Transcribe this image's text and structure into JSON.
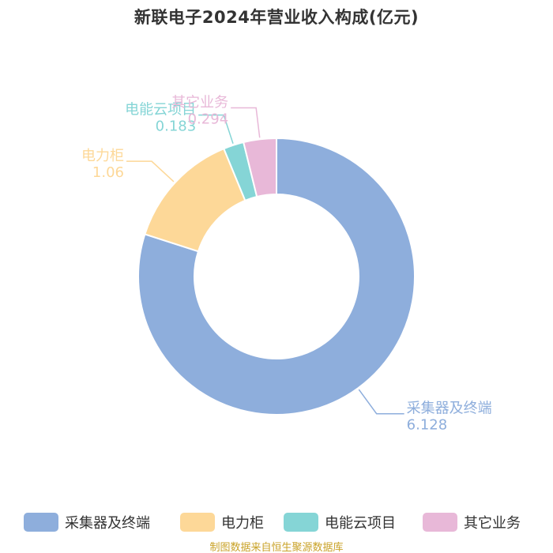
{
  "chart_data": {
    "type": "pie",
    "variant": "donut",
    "title": "新联电子2024年营业收入构成(亿元)",
    "categories": [
      "采集器及终端",
      "电力柜",
      "电能云项目",
      "其它业务"
    ],
    "values": [
      6.128,
      1.06,
      0.183,
      0.294
    ],
    "value_labels": [
      "6.128",
      "1.06",
      "0.183",
      "0.294"
    ],
    "colors": [
      "#8eaedc",
      "#fdd898",
      "#85d5d6",
      "#e8b8d8"
    ],
    "legend_position": "bottom",
    "source": "制图数据来自恒生聚源数据库"
  }
}
